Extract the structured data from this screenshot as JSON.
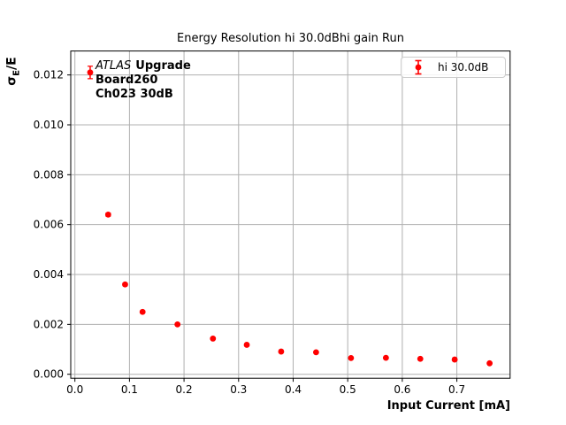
{
  "figure": {
    "background": "#ffffff"
  },
  "annotation": {
    "experiment": "ATLAS",
    "suffix": "Upgrade",
    "board": "Board260",
    "channel": "Ch023 30dB"
  },
  "chart_data": {
    "type": "scatter",
    "title": "Energy Resolution hi 30.0dBhi gain Run",
    "xlabel": "Input Current [mA]",
    "ylabel": "σE/E",
    "ylabel_parts": {
      "sigma": "σ",
      "subscript": "E",
      "rest": "/E"
    },
    "grid": true,
    "grid_color": "#b0b0b0",
    "axis_color": "#000000",
    "xlim": [
      -0.0076,
      0.7976
    ],
    "ylim": [
      -0.00016,
      0.01296
    ],
    "xticks": [
      0.0,
      0.1,
      0.2,
      0.3,
      0.4,
      0.5,
      0.6,
      0.7
    ],
    "xtick_labels": [
      "0.0",
      "0.1",
      "0.2",
      "0.3",
      "0.4",
      "0.5",
      "0.6",
      "0.7"
    ],
    "yticks": [
      0.0,
      0.002,
      0.004,
      0.006,
      0.008,
      0.01,
      0.012
    ],
    "ytick_labels": [
      "0.000",
      "0.002",
      "0.004",
      "0.006",
      "0.008",
      "0.010",
      "0.012"
    ],
    "legend": {
      "position": "upper right",
      "entries": [
        {
          "label": "hi 30.0dB",
          "marker": "errorbar-dot",
          "color": "#ff0000"
        }
      ]
    },
    "series": [
      {
        "name": "hi 30.0dB",
        "color": "#ff0000",
        "marker": "circle",
        "x": [
          0.028,
          0.061,
          0.092,
          0.124,
          0.188,
          0.253,
          0.315,
          0.378,
          0.442,
          0.506,
          0.57,
          0.633,
          0.696,
          0.76
        ],
        "y": [
          0.0121,
          0.0064,
          0.0036,
          0.0025,
          0.002,
          0.00143,
          0.00118,
          0.00091,
          0.00088,
          0.00065,
          0.00066,
          0.00062,
          0.00059,
          0.00044
        ],
        "yerr": [
          0.00025,
          6e-05,
          5e-05,
          4e-05,
          4e-05,
          3e-05,
          3e-05,
          3e-05,
          3e-05,
          2e-05,
          2e-05,
          2e-05,
          2e-05,
          2e-05
        ]
      }
    ]
  }
}
